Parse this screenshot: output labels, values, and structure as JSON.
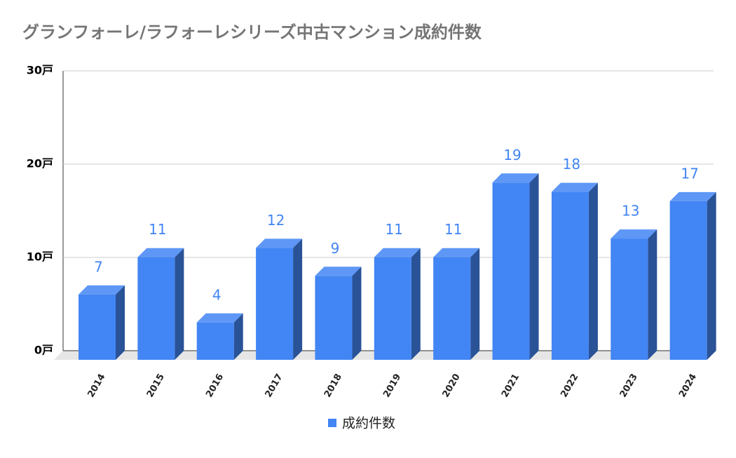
{
  "chart_data": {
    "type": "bar3d",
    "title": "グランフォーレ/ラフォーレシリーズ中古マンション成約件数",
    "categories": [
      "2014",
      "2015",
      "2016",
      "2017",
      "2018",
      "2019",
      "2020",
      "2021",
      "2022",
      "2023",
      "2024"
    ],
    "series": [
      {
        "name": "成約件数",
        "color": "#4285f4",
        "values": [
          7,
          11,
          4,
          12,
          9,
          11,
          11,
          19,
          18,
          13,
          17
        ]
      }
    ],
    "ylim": [
      0,
      30
    ],
    "yticks": [
      {
        "value": 0,
        "label": "0戸"
      },
      {
        "value": 10,
        "label": "10戸"
      },
      {
        "value": 20,
        "label": "20戸"
      },
      {
        "value": 30,
        "label": "30戸"
      }
    ],
    "grid": true,
    "legend": "bottom"
  }
}
